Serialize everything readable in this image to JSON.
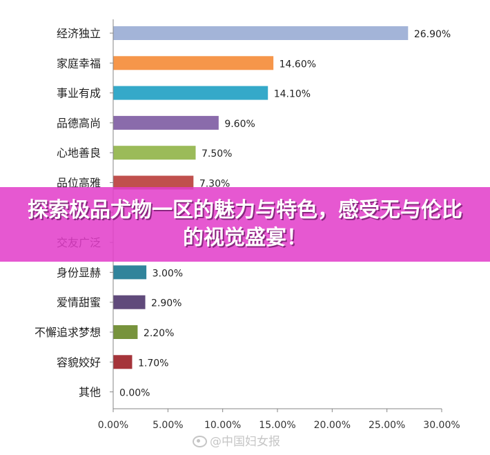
{
  "chart_data": {
    "type": "bar",
    "orientation": "horizontal",
    "categories": [
      "经济独立",
      "家庭幸福",
      "事业有成",
      "品德高尚",
      "心地善良",
      "品位高雅",
      "",
      "交友广泛",
      "身份显赫",
      "爱情甜蜜",
      "不懈追求梦想",
      "容貌姣好",
      "其他"
    ],
    "values": [
      26.9,
      14.6,
      14.1,
      9.6,
      7.5,
      7.3,
      null,
      null,
      3.0,
      2.9,
      2.2,
      1.7,
      0.0
    ],
    "value_labels": [
      "26.90%",
      "14.60%",
      "14.10%",
      "9.60%",
      "7.50%",
      "7.30%",
      "",
      "",
      "3.00%",
      "2.90%",
      "2.20%",
      "1.70%",
      "0.00%"
    ],
    "colors": [
      "#a3b4d8",
      "#f6964a",
      "#35a9c9",
      "#8a6bab",
      "#9bbb59",
      "#c0504d",
      "#4f81bd",
      "#d6378f",
      "#31849b",
      "#604a7b",
      "#77933c",
      "#a5343a",
      "#4f81bd"
    ],
    "xlim": [
      0,
      30
    ],
    "xticks": [
      0,
      5,
      10,
      15,
      20,
      25,
      30
    ],
    "xtick_labels": [
      "0.00%",
      "5.00%",
      "10.00%",
      "15.00%",
      "20.00%",
      "25.00%",
      "30.00%"
    ],
    "title": "",
    "xlabel": "",
    "ylabel": "",
    "grid": false,
    "legend": "none"
  },
  "overlay": {
    "banner_text": "探索极品尤物一区的魅力与特色，感受无与伦比的视觉盛宴！",
    "watermark_text": "@中国妇女报",
    "watermark_icon": "weibo-icon"
  }
}
